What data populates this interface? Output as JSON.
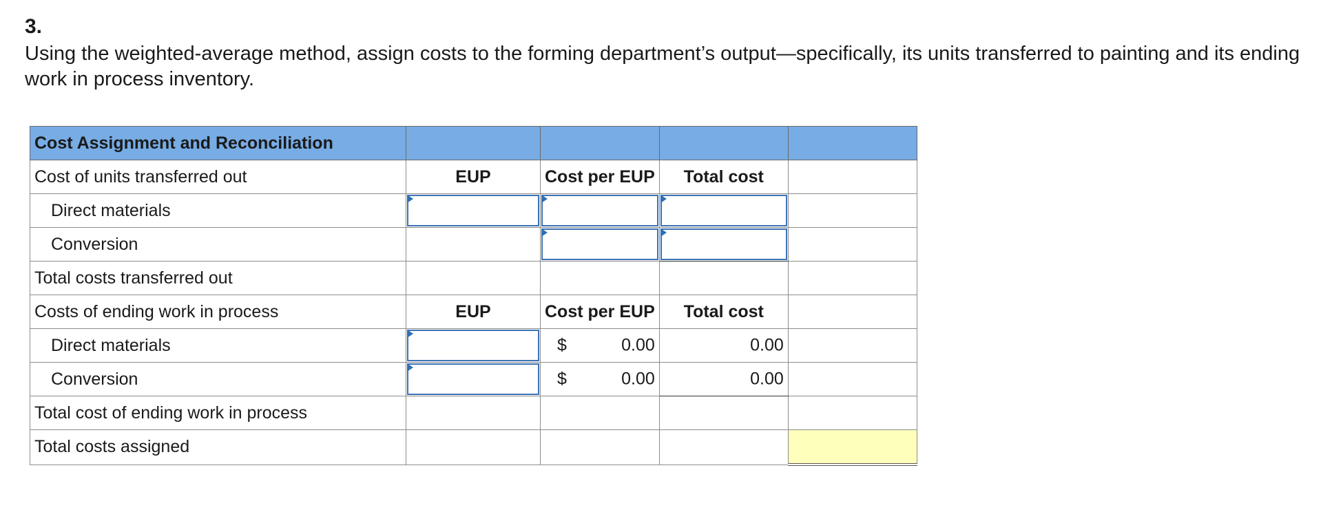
{
  "question": {
    "number": "3.",
    "prompt": "Using the weighted-average method, assign costs to the forming department’s output—specifically, its units transferred to painting and its ending work in process inventory."
  },
  "table": {
    "title": "Cost Assignment and Reconciliation",
    "transferred_out": {
      "label": "Cost of units transferred out",
      "col_eup": "EUP",
      "col_cost_per_eup": "Cost per EUP",
      "col_total_cost": "Total cost",
      "direct_materials_label": "Direct materials",
      "conversion_label": "Conversion",
      "total_label": "Total costs transferred out"
    },
    "ending_wip": {
      "label": "Costs of ending work in process",
      "col_eup": "EUP",
      "col_cost_per_eup": "Cost per EUP",
      "col_total_cost": "Total cost",
      "direct_materials_label": "Direct materials",
      "direct_materials_dollar": "$",
      "direct_materials_cost_per_eup": "0.00",
      "direct_materials_total_cost": "0.00",
      "conversion_label": "Conversion",
      "conversion_dollar": "$",
      "conversion_cost_per_eup": "0.00",
      "conversion_total_cost": "0.00",
      "total_label": "Total cost of ending work in process"
    },
    "total_assigned_label": "Total costs assigned"
  },
  "colors": {
    "header_blue": "#77ace4",
    "input_border": "#3d73b5",
    "highlight_yellow": "#ffffbc"
  }
}
